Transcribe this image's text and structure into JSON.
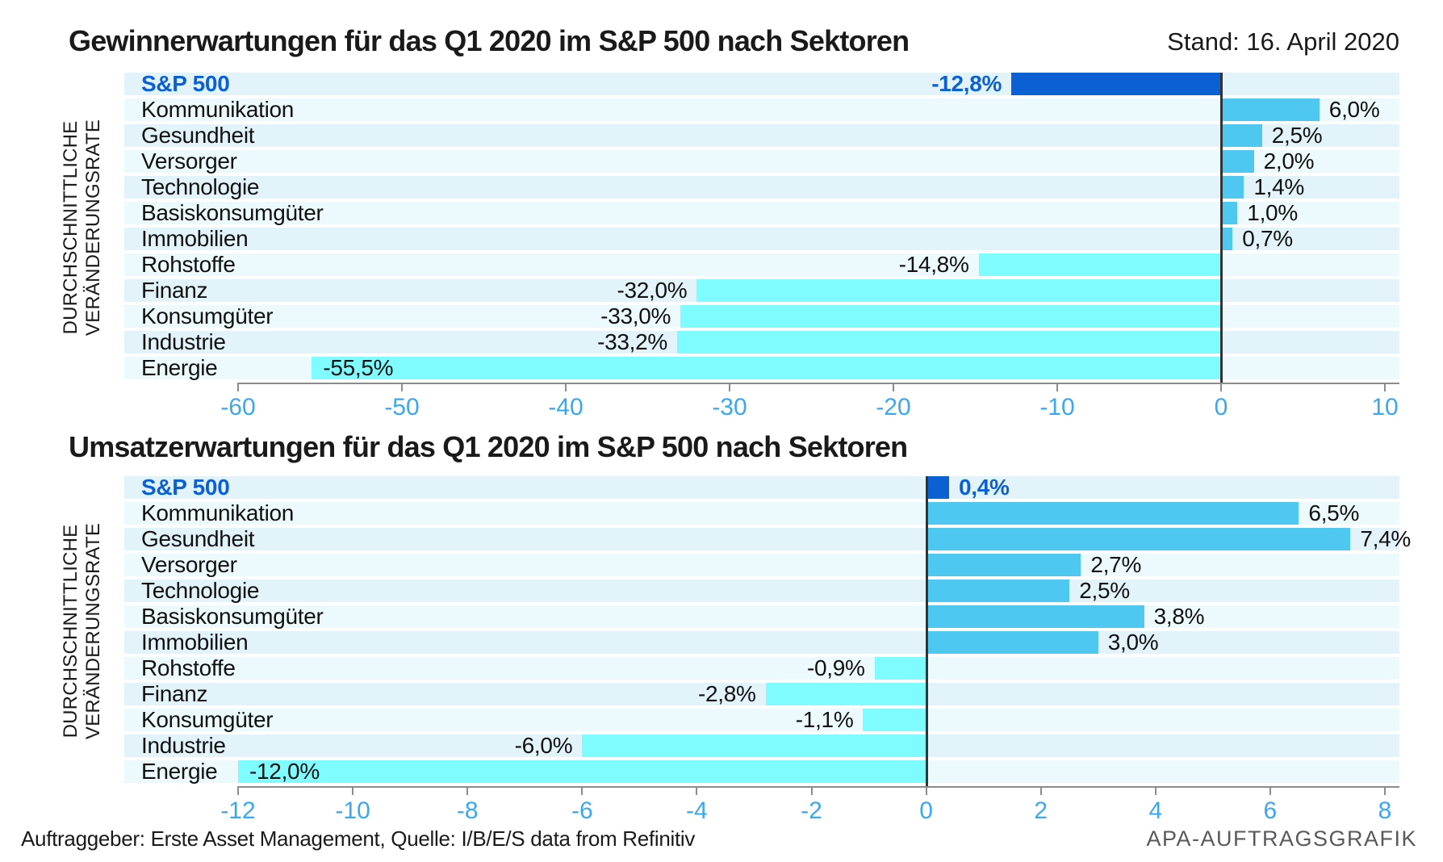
{
  "meta": {
    "date_label": "Stand: 16. April 2020",
    "footer_source": "Auftraggeber: Erste Asset Management, Quelle: I/B/E/S data from Refinitiv",
    "footer_brand": "APA-AUFTRAGSGRAFIK"
  },
  "colors": {
    "sp500": "#0b60d4",
    "positive_bar": "#4ec8f0",
    "negative_bar": "#7efcff",
    "row_even": "#e2f4f9",
    "row_odd": "#edfafd",
    "tick_label": "#3aa8f0",
    "axis_line": "#8c8c8c",
    "zero_line": "#333333",
    "value_text": "#111111",
    "brand_text": "#58595b"
  },
  "y_axis_label": {
    "line1": "DURCHSCHNITTLICHE",
    "line2": "VERÄNDERUNGSRATE"
  },
  "chart_data": [
    {
      "type": "bar",
      "orientation": "horizontal",
      "title": "Gewinnerwartungen für das Q1 2020 im S&P 500 nach Sektoren",
      "ylabel": "DURCHSCHNITTLICHE VERÄNDERUNGSRATE",
      "xlim": [
        -60,
        10
      ],
      "xticks": [
        -60,
        -50,
        -40,
        -30,
        -20,
        -10,
        0,
        10
      ],
      "grid": false,
      "legend": "none",
      "categories": [
        "S&P 500",
        "Kommunikation",
        "Gesundheit",
        "Versorger",
        "Technologie",
        "Basiskonsumgüter",
        "Immobilien",
        "Rohstoffe",
        "Finanz",
        "Konsumgüter",
        "Industrie",
        "Energie"
      ],
      "values": [
        -12.8,
        6.0,
        2.5,
        2.0,
        1.4,
        1.0,
        0.7,
        -14.8,
        -32.0,
        -33.0,
        -33.2,
        -55.5
      ],
      "value_labels": [
        "-12,8%",
        "6,0%",
        "2,5%",
        "2,0%",
        "1,4%",
        "1,0%",
        "0,7%",
        "-14,8%",
        "-32,0%",
        "-33,0%",
        "-33,2%",
        "-55,5%"
      ]
    },
    {
      "type": "bar",
      "orientation": "horizontal",
      "title": "Umsatzerwartungen für das Q1 2020 im S&P 500 nach Sektoren",
      "ylabel": "DURCHSCHNITTLICHE VERÄNDERUNGSRATE",
      "xlim": [
        -12,
        8
      ],
      "xticks": [
        -12,
        -10,
        -8,
        -6,
        -4,
        -2,
        0,
        2,
        4,
        6,
        8
      ],
      "grid": false,
      "legend": "none",
      "categories": [
        "S&P 500",
        "Kommunikation",
        "Gesundheit",
        "Versorger",
        "Technologie",
        "Basiskonsumgüter",
        "Immobilien",
        "Rohstoffe",
        "Finanz",
        "Konsumgüter",
        "Industrie",
        "Energie"
      ],
      "values": [
        0.4,
        6.5,
        7.4,
        2.7,
        2.5,
        3.8,
        3.0,
        -0.9,
        -2.8,
        -1.1,
        -6.0,
        -12.0
      ],
      "value_labels": [
        "0,4%",
        "6,5%",
        "7,4%",
        "2,7%",
        "2,5%",
        "3,8%",
        "3,0%",
        "-0,9%",
        "-2,8%",
        "-1,1%",
        "-6,0%",
        "-12,0%"
      ]
    }
  ]
}
